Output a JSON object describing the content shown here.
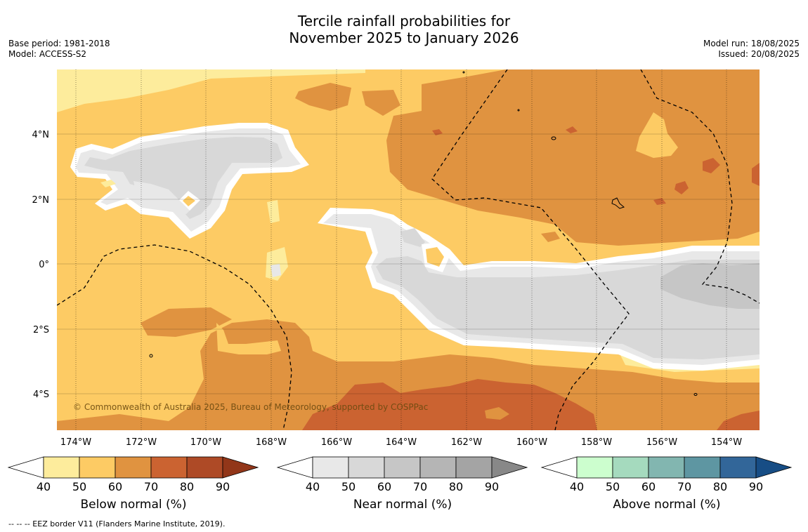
{
  "title": {
    "line1": "Tercile rainfall probabilities for",
    "line2": "November 2025 to January 2026"
  },
  "meta": {
    "base_period": "Base period: 1981-2018",
    "model": "Model: ACCESS-S2",
    "model_run": "Model run: 18/08/2025",
    "issued": "Issued: 20/08/2025"
  },
  "map": {
    "longitude_ticks": [
      "174°W",
      "172°W",
      "170°W",
      "168°W",
      "166°W",
      "164°W",
      "162°W",
      "160°W",
      "158°W",
      "156°W",
      "154°W"
    ],
    "latitude_ticks": [
      "4°N",
      "2°N",
      "0°",
      "2°S",
      "4°S"
    ],
    "copyright": "© Commonwealth of Australia 2025, Bureau of Meteorology, supported by COSPPac",
    "colors": {
      "below_40_50": "#fdec9c",
      "below_50_60": "#fdcb64",
      "below_60_70": "#e09340",
      "below_70_80": "#cb6331",
      "near_50_60": "#d8d8d8",
      "near_60_70": "#c6c6c6",
      "near_40_50": "#e8e8e8"
    }
  },
  "colorbars": [
    {
      "label": "Below normal (%)",
      "ticks": [
        "40",
        "50",
        "60",
        "70",
        "80",
        "90"
      ],
      "colors": [
        "#fdec9c",
        "#fdcb64",
        "#e09340",
        "#cb6331",
        "#ae4a26"
      ],
      "extend_color": "#923619"
    },
    {
      "label": "Near normal (%)",
      "ticks": [
        "40",
        "50",
        "60",
        "70",
        "80",
        "90"
      ],
      "colors": [
        "#e8e8e8",
        "#d8d8d8",
        "#c6c6c6",
        "#b5b5b5",
        "#a4a4a4"
      ],
      "extend_color": "#888888"
    },
    {
      "label": "Above normal (%)",
      "ticks": [
        "40",
        "50",
        "60",
        "70",
        "80",
        "90"
      ],
      "colors": [
        "#ccfece",
        "#a5dabe",
        "#82b6b0",
        "#5e96a2",
        "#326699"
      ],
      "extend_color": "#174d85"
    }
  ],
  "footnote": "--  --  -- EEZ border V11 (Flanders Marine Institute, 2019)."
}
